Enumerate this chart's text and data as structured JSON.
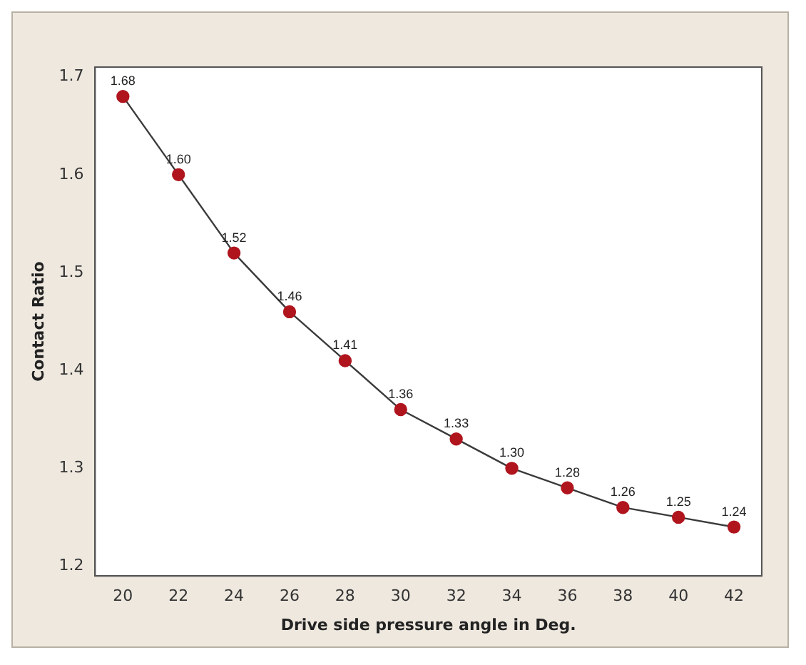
{
  "chart_data": {
    "type": "line",
    "xlabel": "Drive side pressure angle in Deg.",
    "ylabel": "Contact Ratio",
    "x": [
      20,
      22,
      24,
      26,
      28,
      30,
      32,
      34,
      36,
      38,
      40,
      42
    ],
    "series": [
      {
        "color": "#b0151e",
        "values": [
          1.68,
          1.6,
          1.52,
          1.46,
          1.41,
          1.36,
          1.33,
          1.3,
          1.28,
          1.26,
          1.25,
          1.24
        ],
        "value_labels": [
          "1.68",
          "1.60",
          "1.52",
          "1.46",
          "1.41",
          "1.36",
          "1.33",
          "1.30",
          "1.28",
          "1.26",
          "1.25",
          "1.24"
        ]
      }
    ],
    "xlim": [
      19,
      43
    ],
    "xticks": [
      20,
      22,
      24,
      26,
      28,
      30,
      32,
      34,
      36,
      38,
      40,
      42
    ],
    "ylim": [
      1.19,
      1.71
    ],
    "yticks": [
      1.2,
      1.3,
      1.4,
      1.5,
      1.6,
      1.7
    ],
    "grid": false,
    "legend": false,
    "marker": "circle",
    "line_style": "solid"
  }
}
